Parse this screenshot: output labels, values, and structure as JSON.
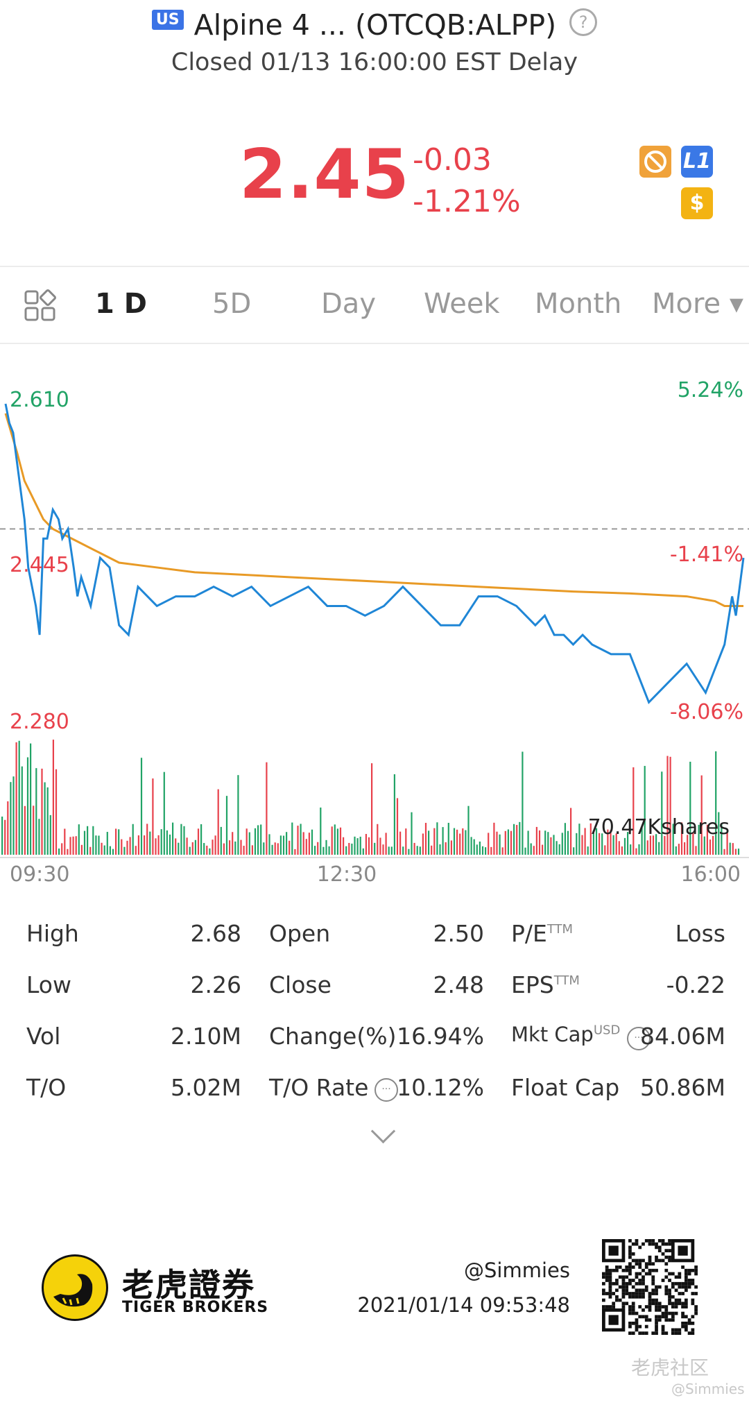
{
  "header": {
    "market_badge": "US",
    "title": "Alpine 4 ... (OTCQB:ALPP)",
    "help_symbol": "?",
    "status": "Closed 01/13 16:00:00 EST Delay"
  },
  "quote": {
    "price": "2.45",
    "change": "-0.03",
    "change_pct": "-1.21%",
    "icons": [
      "no-trade-icon",
      "level1-icon",
      "dollar-icon"
    ],
    "icon_text": {
      "l1": "L1",
      "dollar": "$"
    }
  },
  "tabs": [
    {
      "label": "1 D",
      "active": true
    },
    {
      "label": "5D"
    },
    {
      "label": "Day"
    },
    {
      "label": "Week"
    },
    {
      "label": "Month"
    },
    {
      "label": "More ▾"
    }
  ],
  "chart_data": {
    "type": "line",
    "xlabel": "",
    "ylabel": "",
    "x_ticks": [
      "09:30",
      "12:30",
      "16:00"
    ],
    "y_left_labels": [
      "2.610",
      "2.445",
      "2.280"
    ],
    "y_right_labels": [
      "5.24%",
      "-1.41%",
      "-8.06%"
    ],
    "ylim": [
      2.28,
      2.61
    ],
    "prev_close": 2.48,
    "volume_label": "70.47Kshares",
    "series": [
      {
        "color": "#1f86d6",
        "x": [
          0,
          2,
          4,
          6,
          8,
          10,
          12,
          14,
          16,
          18,
          20,
          22,
          25,
          28,
          30,
          33,
          36,
          38,
          40,
          45,
          50,
          55,
          60,
          65,
          70,
          75,
          80,
          90,
          100,
          110,
          120,
          130,
          140,
          150,
          160,
          170,
          180,
          190,
          200,
          210,
          220,
          230,
          240,
          250,
          260,
          270,
          280,
          285,
          290,
          295,
          300,
          305,
          310,
          320,
          330,
          340,
          350,
          360,
          370,
          380,
          384,
          386,
          388,
          390
        ],
        "y": [
          2.61,
          2.59,
          2.58,
          2.55,
          2.52,
          2.49,
          2.44,
          2.42,
          2.4,
          2.37,
          2.47,
          2.47,
          2.5,
          2.49,
          2.47,
          2.48,
          2.44,
          2.41,
          2.43,
          2.4,
          2.45,
          2.44,
          2.38,
          2.37,
          2.42,
          2.41,
          2.4,
          2.41,
          2.41,
          2.42,
          2.41,
          2.42,
          2.4,
          2.41,
          2.42,
          2.4,
          2.4,
          2.39,
          2.4,
          2.42,
          2.4,
          2.38,
          2.38,
          2.41,
          2.41,
          2.4,
          2.38,
          2.39,
          2.37,
          2.37,
          2.36,
          2.37,
          2.36,
          2.35,
          2.35,
          2.3,
          2.32,
          2.34,
          2.31,
          2.36,
          2.41,
          2.39,
          2.42,
          2.45
        ]
      },
      {
        "color": "#e89a26",
        "x": [
          0,
          3,
          6,
          10,
          15,
          20,
          25,
          30,
          40,
          50,
          60,
          80,
          100,
          150,
          200,
          250,
          300,
          330,
          360,
          375,
          380,
          390
        ],
        "y": [
          2.6,
          2.58,
          2.56,
          2.53,
          2.51,
          2.49,
          2.48,
          2.475,
          2.465,
          2.455,
          2.445,
          2.44,
          2.435,
          2.43,
          2.425,
          2.42,
          2.415,
          2.413,
          2.41,
          2.405,
          2.4,
          2.4
        ]
      }
    ]
  },
  "stats": {
    "high_label": "High",
    "high_value": "2.68",
    "open_label": "Open",
    "open_value": "2.50",
    "pe_label": "P/E",
    "pe_sup": "TTM",
    "pe_value": "Loss",
    "low_label": "Low",
    "low_value": "2.26",
    "close_label": "Close",
    "close_value": "2.48",
    "eps_label": "EPS",
    "eps_sup": "TTM",
    "eps_value": "-0.22",
    "vol_label": "Vol",
    "vol_value": "2.10M",
    "change_label": "Change(%)",
    "change_value": "16.94%",
    "mktcap_label": "Mkt Cap",
    "mktcap_sup": "USD",
    "mktcap_value": "84.06M",
    "to_label": "T/O",
    "to_value": "5.02M",
    "torate_label": "T/O Rate",
    "torate_value": "10.12%",
    "floatcap_label": "Float Cap",
    "floatcap_value": "50.86M",
    "info_symbol": "···"
  },
  "footer": {
    "brand_cn": "老虎證券",
    "brand_en": "TIGER BROKERS",
    "username": "@Simmies",
    "timestamp": "2021/01/14 09:53:48",
    "watermark_cn": "老虎社区",
    "watermark_user": "@Simmies"
  },
  "colors": {
    "up": "#e8414b",
    "down": "#21a366",
    "price_line": "#1f86d6",
    "avg_line": "#e89a26"
  }
}
